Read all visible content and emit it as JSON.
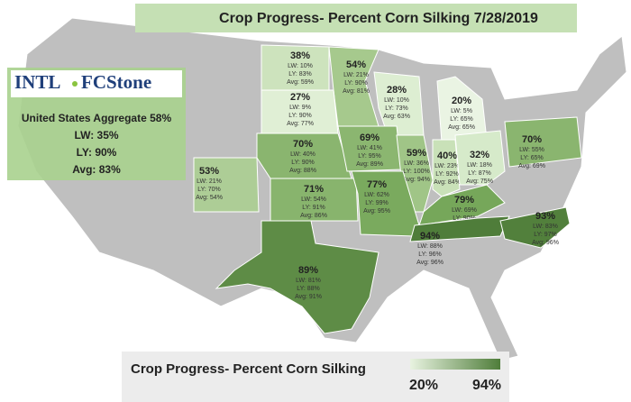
{
  "title": "Crop Progress- Percent Corn Silking 7/28/2019",
  "logo": {
    "left": "INTL",
    "right": "FCStone"
  },
  "aggregate": {
    "headline": "United States Aggregate 58%",
    "lw": "LW: 35%",
    "ly": "LY: 90%",
    "avg": "Avg: 83%"
  },
  "legend": {
    "title": "Crop Progress- Percent Corn Silking",
    "min": "20%",
    "max": "94%",
    "min_color": "#e8f3e0",
    "max_color": "#4f7d3a"
  },
  "states": [
    {
      "value": "38%",
      "lw": "LW: 10%",
      "ly": "LY: 83%",
      "avg": "Avg: 59%",
      "color": "#cde3bd"
    },
    {
      "value": "54%",
      "lw": "LW: 21%",
      "ly": "LY: 90%",
      "avg": "Avg: 81%",
      "color": "#a6c98d"
    },
    {
      "value": "27%",
      "lw": "LW: 9%",
      "ly": "LY: 90%",
      "avg": "Avg: 77%",
      "color": "#e0efd5"
    },
    {
      "value": "28%",
      "lw": "LW: 10%",
      "ly": "LY: 73%",
      "avg": "Avg: 63%",
      "color": "#ddeed2"
    },
    {
      "value": "20%",
      "lw": "LW: 5%",
      "ly": "LY: 65%",
      "avg": "Avg: 65%",
      "color": "#eaf4e3"
    },
    {
      "value": "70%",
      "lw": "LW: 40%",
      "ly": "LY: 90%",
      "avg": "Avg: 88%",
      "color": "#8ab56f"
    },
    {
      "value": "69%",
      "lw": "LW: 41%",
      "ly": "LY: 95%",
      "avg": "Avg: 89%",
      "color": "#8bb670"
    },
    {
      "value": "59%",
      "lw": "LW: 36%",
      "ly": "LY: 100%",
      "avg": "Avg: 94%",
      "color": "#a0c587"
    },
    {
      "value": "40%",
      "lw": "LW: 23%",
      "ly": "LY: 92%",
      "avg": "Avg: 84%",
      "color": "#c9e1b8"
    },
    {
      "value": "32%",
      "lw": "LW: 18%",
      "ly": "LY: 87%",
      "avg": "Avg: 75%",
      "color": "#d6eaca"
    },
    {
      "value": "70%",
      "lw": "LW: 55%",
      "ly": "LY: 65%",
      "avg": "Avg: 69%",
      "color": "#8ab56f"
    },
    {
      "value": "53%",
      "lw": "LW: 21%",
      "ly": "LY: 70%",
      "avg": "Avg: 54%",
      "color": "#adcd96"
    },
    {
      "value": "71%",
      "lw": "LW: 54%",
      "ly": "LY: 91%",
      "avg": "Avg: 86%",
      "color": "#88b46d"
    },
    {
      "value": "77%",
      "lw": "LW: 62%",
      "ly": "LY: 99%",
      "avg": "Avg: 95%",
      "color": "#7aaa5e"
    },
    {
      "value": "79%",
      "lw": "LW: 69%",
      "ly": "LY: 90%",
      "avg": "Avg: 88%",
      "color": "#76a75a"
    },
    {
      "value": "94%",
      "lw": "LW: 88%",
      "ly": "LY: 96%",
      "avg": "Avg: 96%",
      "color": "#4f7d3a"
    },
    {
      "value": "93%",
      "lw": "LW: 83%",
      "ly": "LY: 97%",
      "avg": "Avg: 96%",
      "color": "#52803c"
    },
    {
      "value": "89%",
      "lw": "LW: 81%",
      "ly": "LY: 88%",
      "avg": "Avg: 91%",
      "color": "#5e8c46"
    }
  ]
}
